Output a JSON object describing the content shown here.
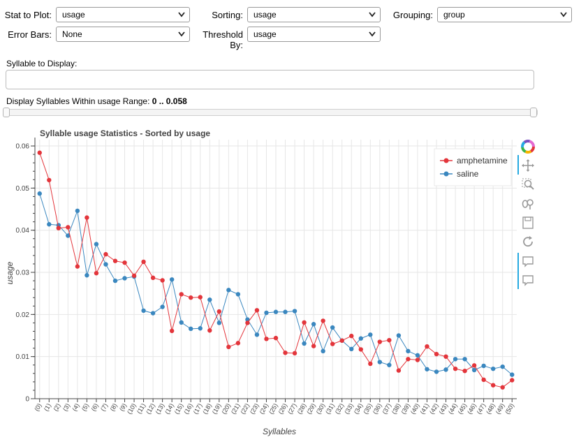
{
  "controls": {
    "stat_label": "Stat to Plot:",
    "stat_value": "usage",
    "sorting_label": "Sorting:",
    "sorting_value": "usage",
    "grouping_label": "Grouping:",
    "grouping_value": "group",
    "errorbars_label": "Error Bars:",
    "errorbars_value": "None",
    "threshold_label": "Threshold By:",
    "threshold_value": "usage",
    "syllable_label": "Syllable to Display:",
    "syllable_value": "",
    "range_label": "Display Syllables Within usage Range:",
    "range_value": "0 .. 0.058",
    "range_min": 0,
    "range_max": 0.058
  },
  "toolbar": [
    "color-wheel-icon",
    "pan-icon",
    "box-zoom-icon",
    "wheel-zoom-icon",
    "save-icon",
    "reset-icon",
    "hover-icon",
    "hover-icon"
  ],
  "colors": {
    "amphetamine": "#e3353b",
    "saline": "#3a87bf"
  },
  "chart_data": {
    "type": "line",
    "title": "Syllable usage Statistics - Sorted by usage",
    "xlabel": "Syllables",
    "ylabel": "usage",
    "ylim": [
      0,
      0.0615
    ],
    "yticks": [
      0,
      0.01,
      0.02,
      0.03,
      0.04,
      0.05,
      0.06
    ],
    "ytick_labels": [
      "0",
      "0.01",
      "0.02",
      "0.03",
      "0.04",
      "0.05",
      "0.06"
    ],
    "categories": [
      "(0)",
      "(1)",
      "(2)",
      "(3)",
      "(4)",
      "(5)",
      "(6)",
      "(7)",
      "(8)",
      "(9)",
      "(10)",
      "(11)",
      "(12)",
      "(13)",
      "(14)",
      "(15)",
      "(16)",
      "(17)",
      "(18)",
      "(19)",
      "(20)",
      "(21)",
      "(22)",
      "(23)",
      "(24)",
      "(25)",
      "(26)",
      "(27)",
      "(28)",
      "(29)",
      "(30)",
      "(31)",
      "(32)",
      "(33)",
      "(34)",
      "(35)",
      "(36)",
      "(37)",
      "(38)",
      "(39)",
      "(40)",
      "(41)",
      "(42)",
      "(43)",
      "(44)",
      "(45)",
      "(46)",
      "(47)",
      "(48)",
      "(49)",
      "(50)"
    ],
    "grid": true,
    "legend_position": "top-right",
    "series": [
      {
        "name": "amphetamine",
        "values": [
          0.0584,
          0.0519,
          0.0405,
          0.0407,
          0.0314,
          0.043,
          0.0298,
          0.0343,
          0.0327,
          0.0323,
          0.0292,
          0.0325,
          0.0287,
          0.0281,
          0.0161,
          0.0248,
          0.024,
          0.0241,
          0.0162,
          0.0207,
          0.0123,
          0.0132,
          0.018,
          0.021,
          0.0142,
          0.0144,
          0.0109,
          0.0108,
          0.0181,
          0.0125,
          0.0185,
          0.013,
          0.0138,
          0.0149,
          0.0117,
          0.0083,
          0.0135,
          0.0139,
          0.0067,
          0.0094,
          0.0092,
          0.0124,
          0.0106,
          0.01,
          0.0071,
          0.0066,
          0.0079,
          0.0045,
          0.0032,
          0.0027,
          0.0044
        ]
      },
      {
        "name": "saline",
        "values": [
          0.0487,
          0.0414,
          0.0412,
          0.0387,
          0.0446,
          0.0293,
          0.0367,
          0.0319,
          0.028,
          0.0286,
          0.029,
          0.0209,
          0.0203,
          0.0218,
          0.0283,
          0.0181,
          0.0166,
          0.0167,
          0.0235,
          0.018,
          0.0258,
          0.0248,
          0.0188,
          0.0152,
          0.0204,
          0.0206,
          0.0206,
          0.0208,
          0.0131,
          0.0177,
          0.0113,
          0.0169,
          0.0138,
          0.0118,
          0.0143,
          0.0152,
          0.0087,
          0.008,
          0.015,
          0.0113,
          0.0103,
          0.007,
          0.0064,
          0.0069,
          0.0094,
          0.0094,
          0.0068,
          0.0078,
          0.0071,
          0.0076,
          0.0057
        ]
      }
    ]
  }
}
